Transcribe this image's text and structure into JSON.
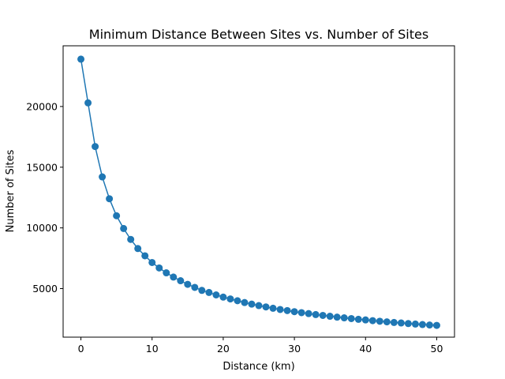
{
  "chart_data": {
    "type": "line",
    "title": "Minimum Distance Between Sites vs. Number of Sites",
    "xlabel": "Distance (km)",
    "ylabel": "Number of Sites",
    "xlim": [
      -2.5,
      52.5
    ],
    "ylim": [
      1000,
      25000
    ],
    "xticks": [
      0,
      10,
      20,
      30,
      40,
      50
    ],
    "yticks": [
      5000,
      10000,
      15000,
      20000
    ],
    "grid": false,
    "markers": true,
    "series": [
      {
        "color": "#1f77b4",
        "x": [
          0,
          1,
          2,
          3,
          4,
          5,
          6,
          7,
          8,
          9,
          10,
          11,
          12,
          13,
          14,
          15,
          16,
          17,
          18,
          19,
          20,
          21,
          22,
          23,
          24,
          25,
          26,
          27,
          28,
          29,
          30,
          31,
          32,
          33,
          34,
          35,
          36,
          37,
          38,
          39,
          40,
          41,
          42,
          43,
          44,
          45,
          46,
          47,
          48,
          49,
          50
        ],
        "y": [
          23900,
          20300,
          16700,
          14200,
          12400,
          11000,
          9950,
          9050,
          8300,
          7700,
          7150,
          6700,
          6300,
          5950,
          5650,
          5350,
          5100,
          4850,
          4680,
          4480,
          4300,
          4150,
          4000,
          3850,
          3720,
          3600,
          3490,
          3380,
          3280,
          3190,
          3100,
          3020,
          2940,
          2860,
          2790,
          2720,
          2650,
          2590,
          2530,
          2470,
          2420,
          2360,
          2310,
          2260,
          2210,
          2170,
          2120,
          2080,
          2040,
          2000,
          1970
        ]
      }
    ]
  }
}
